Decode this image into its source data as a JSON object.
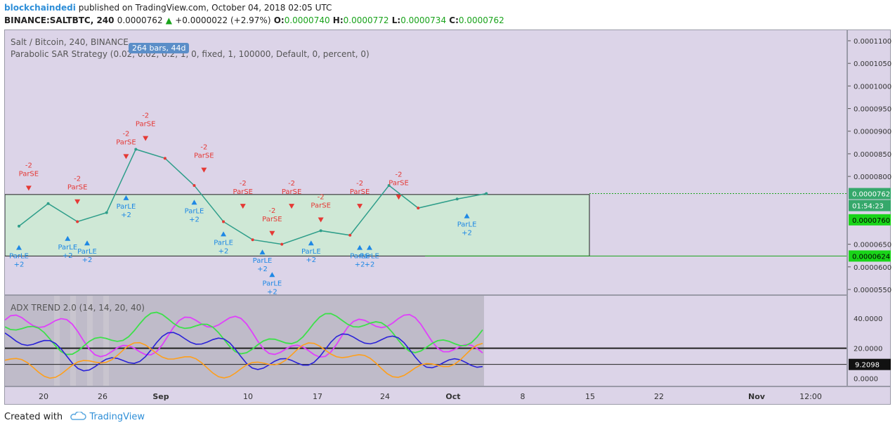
{
  "header": {
    "author": "blockchaindedi",
    "published": "published on TradingView.com, October 04, 2018 02:05 UTC",
    "symbol": "BINANCE:SALTBTC, 240",
    "last": "0.0000762",
    "change": "+0.0000022 (+2.97%)",
    "o_label": "O:",
    "o_value": "0.0000740",
    "h_label": "H:",
    "h_value": "0.0000772",
    "l_label": "L:",
    "l_value": "0.0000734",
    "c_label": "C:",
    "c_value": "0.0000762"
  },
  "legend": {
    "title": "Salt / Bitcoin, 240, BINANCE",
    "strategy": "Parabolic SAR Strategy (0.02, 0.02, 0.2, 1, 0, fixed, 1, 100000, Default, 0, percent, 0)",
    "badge": "264 bars, 44d",
    "adx": "ADX TREND 2.0 (14, 14, 20, 40)"
  },
  "price_axis": {
    "ticks": [
      "0.0001100",
      "0.0001050",
      "0.0001000",
      "0.0000950",
      "0.0000900",
      "0.0000850",
      "0.0000800",
      "0.0000650",
      "0.0000600",
      "0.0000550"
    ],
    "badge_last": "0.0000762",
    "badge_timer": "01:54:23",
    "badge_high": "0.0000760",
    "badge_low": "0.0000624"
  },
  "adx_axis": {
    "ticks": [
      "40.0000",
      "20.0000",
      "0.0000"
    ],
    "badge": "9.2098"
  },
  "time_axis": [
    "20",
    "26",
    "Sep",
    "10",
    "17",
    "24",
    "Oct",
    "8",
    "15",
    "22",
    "Nov",
    "12:00"
  ],
  "footer": {
    "created": "Created with",
    "brand": "TradingView"
  },
  "colors": {
    "up": "#2e9e8a",
    "down": "#e53935",
    "long": "#1e88e5",
    "short": "#e53935",
    "accent": "#19a31b",
    "magenta": "#e040fb",
    "green": "#3de04a",
    "blue": "#2a22d8",
    "orange": "#ff9f1a"
  },
  "chart_data": {
    "type": "line",
    "title": "Salt / Bitcoin, 240, BINANCE",
    "x": [
      "Aug 17",
      "Aug 20",
      "Aug 23",
      "Aug 26",
      "Aug 29",
      "Sep 1",
      "Sep 4",
      "Sep 7",
      "Sep 10",
      "Sep 13",
      "Sep 17",
      "Sep 20",
      "Sep 24",
      "Sep 27",
      "Oct 1",
      "Oct 4"
    ],
    "series": [
      {
        "values": [
          6.9e-05,
          7.4e-05,
          7e-05,
          7.2e-05,
          8.6e-05,
          8.4e-05,
          7.8e-05,
          7e-05,
          6.6e-05,
          6.5e-05,
          6.8e-05,
          6.7e-05,
          7.8e-05,
          7.3e-05,
          7.5e-05,
          7.62e-05
        ]
      }
    ],
    "ylim": [
      5.3e-05,
      0.000112
    ],
    "grid": false,
    "annotations": [
      {
        "type": "ParSE",
        "text": "ParSE",
        "qty": "-2",
        "x": "Aug 18",
        "price": 7.7e-05
      },
      {
        "type": "ParLE",
        "text": "ParLE",
        "qty": "+2",
        "x": "Aug 17",
        "price": 6.5e-05
      },
      {
        "type": "ParSE",
        "text": "ParSE",
        "qty": "-2",
        "x": "Aug 23",
        "price": 7.4e-05
      },
      {
        "type": "ParLE",
        "text": "ParLE",
        "qty": "+2",
        "x": "Aug 22",
        "price": 6.7e-05
      },
      {
        "type": "ParLE",
        "text": "ParLE",
        "qty": "+2",
        "x": "Aug 24",
        "price": 6.6e-05
      },
      {
        "type": "ParSE",
        "text": "ParSE",
        "qty": "-2",
        "x": "Aug 28",
        "price": 8.4e-05
      },
      {
        "type": "ParSE",
        "text": "ParSE",
        "qty": "-2",
        "x": "Aug 30",
        "price": 8.8e-05
      },
      {
        "type": "ParLE",
        "text": "ParLE",
        "qty": "+2",
        "x": "Aug 28",
        "price": 7.6e-05
      },
      {
        "type": "ParSE",
        "text": "ParSE",
        "qty": "-2",
        "x": "Sep 5",
        "price": 8.1e-05
      },
      {
        "type": "ParLE",
        "text": "ParLE",
        "qty": "+2",
        "x": "Sep 4",
        "price": 7.5e-05
      },
      {
        "type": "ParLE",
        "text": "ParLE",
        "qty": "+2",
        "x": "Sep 7",
        "price": 6.8e-05
      },
      {
        "type": "ParSE",
        "text": "ParSE",
        "qty": "-2",
        "x": "Sep 9",
        "price": 7.3e-05
      },
      {
        "type": "ParSE",
        "text": "ParSE",
        "qty": "-2",
        "x": "Sep 12",
        "price": 6.7e-05
      },
      {
        "type": "ParLE",
        "text": "ParLE",
        "qty": "+2",
        "x": "Sep 11",
        "price": 6.4e-05
      },
      {
        "type": "ParLE",
        "text": "ParLE",
        "qty": "+2",
        "x": "Sep 12",
        "price": 5.9e-05
      },
      {
        "type": "ParSE",
        "text": "ParSE",
        "qty": "-2",
        "x": "Sep 14",
        "price": 7.3e-05
      },
      {
        "type": "ParLE",
        "text": "ParLE",
        "qty": "+2",
        "x": "Sep 16",
        "price": 6.6e-05
      },
      {
        "type": "ParSE",
        "text": "ParSE",
        "qty": "-2",
        "x": "Sep 17",
        "price": 7e-05
      },
      {
        "type": "ParLE",
        "text": "ParLE",
        "qty": "+2",
        "x": "Sep 21",
        "price": 6.5e-05
      },
      {
        "type": "ParSE",
        "text": "ParSE",
        "qty": "-2",
        "x": "Sep 21",
        "price": 7.3e-05
      },
      {
        "type": "ParLE",
        "text": "ParLE",
        "qty": "+2",
        "x": "Sep 22",
        "price": 6.5e-05
      },
      {
        "type": "ParSE",
        "text": "ParSE",
        "qty": "-2",
        "x": "Sep 25",
        "price": 7.5e-05
      },
      {
        "type": "ParLE",
        "text": "ParLE",
        "qty": "+2",
        "x": "Oct 2",
        "price": 7.2e-05
      }
    ],
    "range_box": {
      "x": [
        "Aug 14",
        "Oct 15"
      ],
      "y": [
        6.24e-05,
        7.6e-05
      ]
    },
    "adx": {
      "ylim": [
        -5,
        55
      ],
      "ticks": [
        40,
        20,
        0
      ],
      "levels": [
        20,
        9.2098
      ],
      "series_colors": [
        "#e040fb",
        "#3de04a",
        "#2a22d8",
        "#ff9f1a"
      ]
    }
  }
}
